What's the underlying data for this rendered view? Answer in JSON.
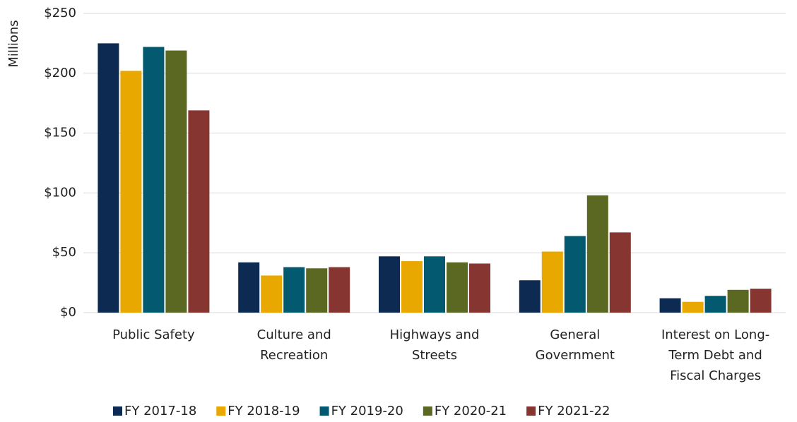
{
  "chart_data": {
    "type": "bar",
    "y_axis_label": "Millions",
    "categories": [
      "Public Safety",
      "Culture and Recreation",
      "Highways and Streets",
      "General Government",
      "Interest on Long-Term Debt and Fiscal Charges"
    ],
    "series": [
      {
        "name": "FY 2017-18",
        "color": "#0c2a52",
        "values": [
          225,
          42,
          47,
          27,
          12
        ]
      },
      {
        "name": "FY 2018-19",
        "color": "#e9a800",
        "values": [
          202,
          31,
          43,
          51,
          9
        ]
      },
      {
        "name": "FY 2019-20",
        "color": "#035a70",
        "values": [
          222,
          38,
          47,
          64,
          14
        ]
      },
      {
        "name": "FY 2020-21",
        "color": "#5b6821",
        "values": [
          219,
          37,
          42,
          98,
          19
        ]
      },
      {
        "name": "FY 2021-22",
        "color": "#873530",
        "values": [
          169,
          38,
          41,
          67,
          20
        ]
      }
    ],
    "ylim": [
      0,
      250
    ],
    "yticks": [
      {
        "value": 0,
        "label": "$0"
      },
      {
        "value": 50,
        "label": "$50"
      },
      {
        "value": 100,
        "label": "$100"
      },
      {
        "value": 150,
        "label": "$150"
      },
      {
        "value": 200,
        "label": "$200"
      },
      {
        "value": 250,
        "label": "$250"
      }
    ],
    "grid": true
  }
}
